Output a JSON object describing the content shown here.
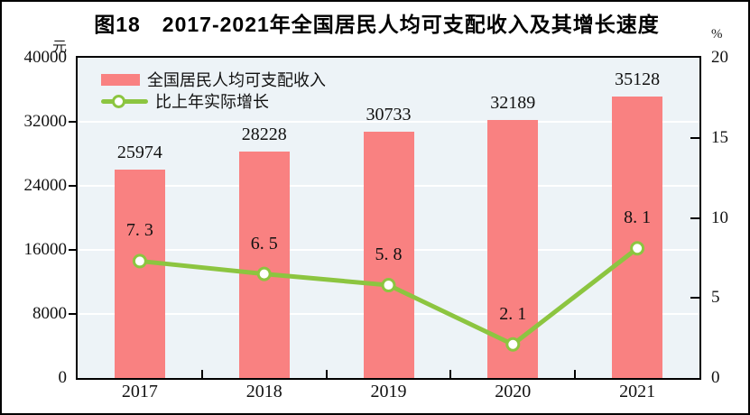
{
  "figure": {
    "title": "图18　2017-2021年全国居民人均可支配收入及其增长速度",
    "unit_left": "元",
    "unit_right": "%"
  },
  "legend": {
    "items": [
      {
        "label": "全国居民人均可支配收入",
        "swatch": "bar"
      },
      {
        "label": "比上年实际增长",
        "swatch": "line"
      }
    ]
  },
  "colors": {
    "bar": "#f98181",
    "line": "#8cc540",
    "marker_fill": "#ffffff",
    "plot_background": "#edf3f7",
    "gridline": "#ffffff",
    "axis": "#000000",
    "text": "#111111"
  },
  "chart_data": {
    "type": "bar",
    "subtype": "bar+line combo, dual axis",
    "title": "图18　2017-2021年全国居民人均可支配收入及其增长速度",
    "categories": [
      "2017",
      "2018",
      "2019",
      "2020",
      "2021"
    ],
    "series": [
      {
        "name": "全国居民人均可支配收入",
        "type": "bar",
        "axis": "left",
        "values": [
          25974,
          28228,
          30733,
          32189,
          35128
        ],
        "labels": [
          "25974",
          "28228",
          "30733",
          "32189",
          "35128"
        ],
        "color": "#f98181"
      },
      {
        "name": "比上年实际增长",
        "type": "line",
        "axis": "right",
        "values": [
          7.3,
          6.5,
          5.8,
          2.1,
          8.1
        ],
        "labels": [
          "7. 3",
          "6. 5",
          "5. 8",
          "2. 1",
          "8. 1"
        ],
        "color": "#8cc540"
      }
    ],
    "left_axis": {
      "unit": "元",
      "range": [
        0,
        40000
      ],
      "ticks": [
        0,
        8000,
        16000,
        24000,
        32000,
        40000
      ]
    },
    "right_axis": {
      "unit": "%",
      "range": [
        0,
        20
      ],
      "ticks": [
        0,
        5,
        10,
        15,
        20
      ]
    },
    "grid": true,
    "legend_position": "top-left inside plot"
  }
}
